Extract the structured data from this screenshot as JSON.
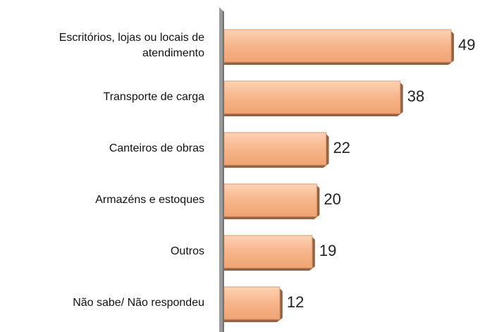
{
  "chart_data": {
    "type": "bar",
    "orientation": "horizontal",
    "categories": [
      "Escritórios, lojas ou locais de atendimento",
      "Transporte de carga",
      "Canteiros de obras",
      "Armazéns e estoques",
      "Outros",
      "Não sabe/ Não respondeu"
    ],
    "values": [
      49,
      38,
      22,
      20,
      19,
      12
    ],
    "color": "#f7b58a"
  }
}
